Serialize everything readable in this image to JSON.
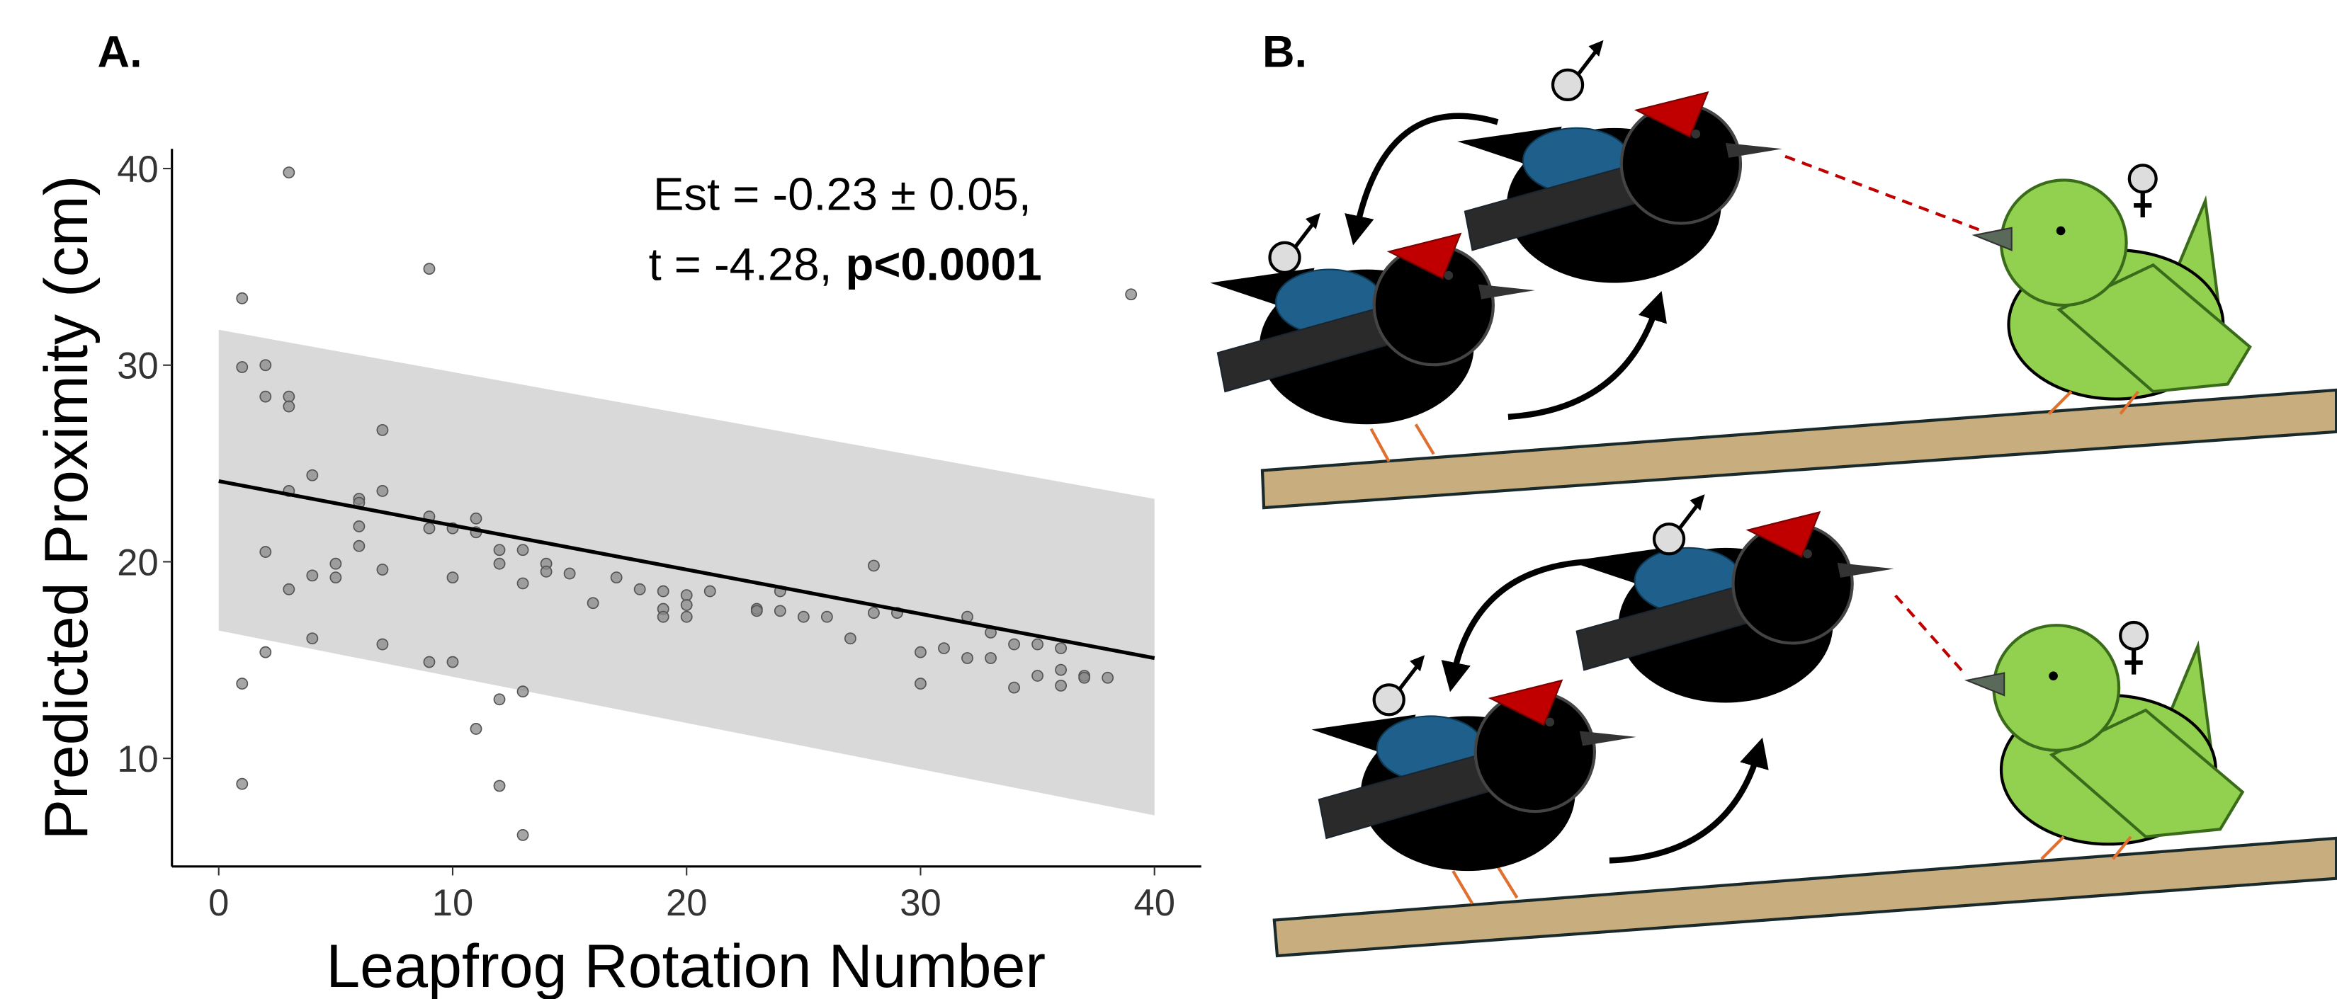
{
  "panel_labels": [
    "A.",
    "B."
  ],
  "chart_data": {
    "type": "scatter",
    "x_label": "Leapfrog Rotation Number",
    "y_label": "Predicted Proximity (cm)",
    "annotation_line1": "Est = -0.23 ± 0.05,",
    "annotation_line2": "t = -4.28,",
    "annotation_bold": "p<0.0001",
    "xlim": [
      -2,
      42
    ],
    "ylim": [
      4.5,
      41
    ],
    "xticks": [
      0,
      10,
      20,
      30,
      40
    ],
    "yticks": [
      10,
      20,
      30,
      40
    ],
    "grid": false,
    "point_color": "#888888",
    "x": [
      3,
      1,
      9,
      39,
      1,
      2,
      3,
      3,
      2,
      7,
      4,
      3,
      7,
      6,
      6,
      6,
      6,
      9,
      9,
      10,
      11,
      11,
      2,
      12,
      13,
      12,
      14,
      14,
      15,
      5,
      4,
      5,
      7,
      10,
      13,
      3,
      17,
      16,
      18,
      19,
      19,
      20,
      20,
      20,
      19,
      21,
      23,
      23,
      24,
      24,
      25,
      26,
      28,
      28,
      29,
      27,
      4,
      7,
      2,
      9,
      10,
      30,
      31,
      32,
      32,
      33,
      33,
      34,
      35,
      36,
      34,
      35,
      36,
      36,
      37,
      37,
      38,
      30,
      1,
      12,
      13,
      11,
      1,
      12,
      13
    ],
    "values": [
      39.8,
      33.4,
      34.9,
      33.6,
      29.9,
      30,
      28.4,
      27.9,
      28.4,
      26.7,
      24.4,
      23.6,
      23.6,
      23.2,
      23,
      21.8,
      20.8,
      22.3,
      21.7,
      21.7,
      22.2,
      21.5,
      20.5,
      20.6,
      20.6,
      19.9,
      19.9,
      19.5,
      19.4,
      19.9,
      19.3,
      19.2,
      19.6,
      19.2,
      18.9,
      18.6,
      19.2,
      17.9,
      18.6,
      18.5,
      17.6,
      18.3,
      17.8,
      17.2,
      17.2,
      18.5,
      17.6,
      17.5,
      18.5,
      17.5,
      17.2,
      17.2,
      19.8,
      17.4,
      17.4,
      16.1,
      16.1,
      15.8,
      15.4,
      14.9,
      14.9,
      15.4,
      15.6,
      17.2,
      15.1,
      15.1,
      16.4,
      15.8,
      15.8,
      15.6,
      13.6,
      14.2,
      14.5,
      13.7,
      14.2,
      14.1,
      14.1,
      13.8,
      13.8,
      13,
      13.4,
      11.5,
      8.7,
      8.6,
      6.1
    ],
    "fit": {
      "color": "#000000",
      "x": [
        0,
        40
      ],
      "values": [
        24.1,
        15.1
      ]
    },
    "band": {
      "color": "#d9d9d9",
      "x": [
        0,
        40
      ],
      "lower": [
        16.5,
        7.1
      ],
      "upper": [
        31.8,
        23.2
      ]
    }
  }
}
